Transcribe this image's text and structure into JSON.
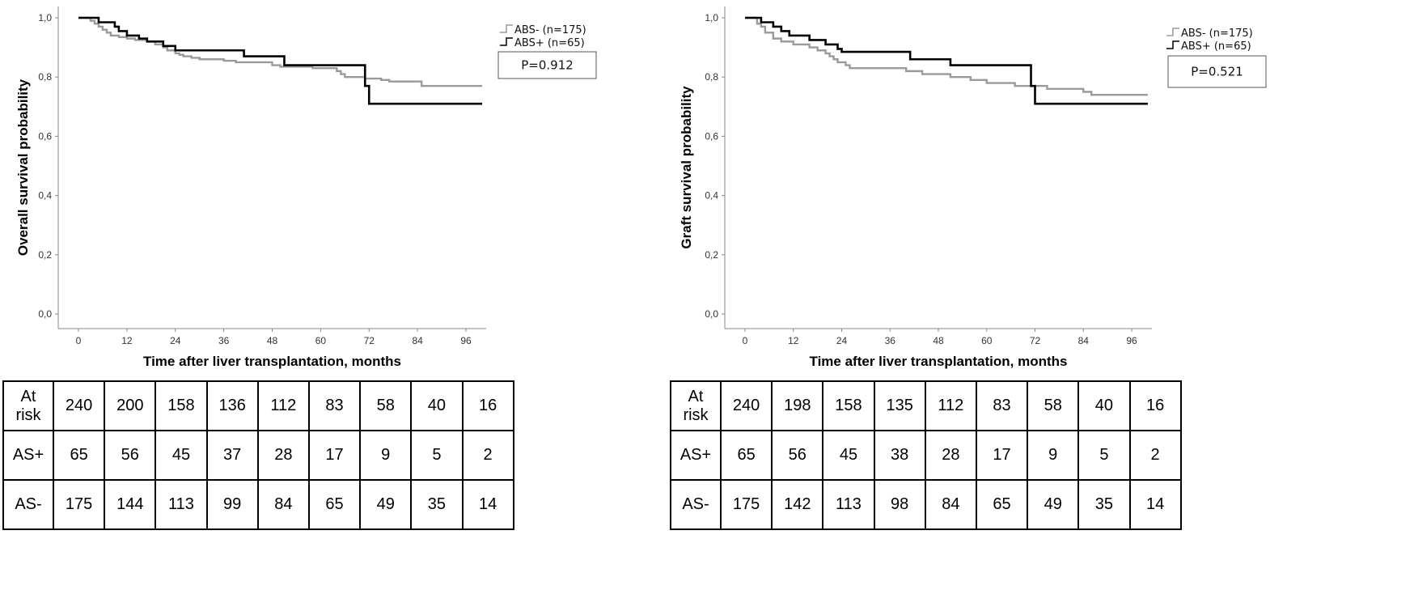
{
  "chart_data": [
    {
      "type": "line",
      "subtype": "kaplan-meier",
      "ylabel": "Overall survival probability",
      "xlabel": "Time after liver transplantation, months",
      "xlim": [
        0,
        100
      ],
      "ylim": [
        0,
        1.0
      ],
      "xticks": [
        0,
        12,
        24,
        36,
        48,
        60,
        72,
        84,
        96
      ],
      "yticks": [
        "0,0",
        "0,2",
        "0,4",
        "0,6",
        "0,8",
        "1,0"
      ],
      "legend": [
        "ABS- (n=175)",
        "ABS+ (n=65)"
      ],
      "p_value": "P=0.912",
      "series": [
        {
          "name": "ABS- (n=175)",
          "color": "#9a9a9a",
          "points": [
            [
              0,
              1.0
            ],
            [
              3,
              0.99
            ],
            [
              4,
              0.98
            ],
            [
              5,
              0.97
            ],
            [
              6,
              0.96
            ],
            [
              7,
              0.95
            ],
            [
              8,
              0.94
            ],
            [
              10,
              0.935
            ],
            [
              12,
              0.93
            ],
            [
              14,
              0.925
            ],
            [
              17,
              0.92
            ],
            [
              19,
              0.91
            ],
            [
              21,
              0.9
            ],
            [
              22,
              0.89
            ],
            [
              24,
              0.88
            ],
            [
              25,
              0.875
            ],
            [
              26,
              0.87
            ],
            [
              28,
              0.865
            ],
            [
              30,
              0.86
            ],
            [
              36,
              0.855
            ],
            [
              39,
              0.85
            ],
            [
              48,
              0.84
            ],
            [
              50,
              0.835
            ],
            [
              58,
              0.83
            ],
            [
              64,
              0.82
            ],
            [
              65,
              0.81
            ],
            [
              66,
              0.8
            ],
            [
              71,
              0.795
            ],
            [
              75,
              0.79
            ],
            [
              77,
              0.785
            ],
            [
              85,
              0.77
            ],
            [
              100,
              0.77
            ]
          ]
        },
        {
          "name": "ABS+ (n=65)",
          "color": "#000000",
          "points": [
            [
              0,
              1.0
            ],
            [
              5,
              0.985
            ],
            [
              9,
              0.97
            ],
            [
              10,
              0.955
            ],
            [
              12,
              0.94
            ],
            [
              15,
              0.93
            ],
            [
              17,
              0.92
            ],
            [
              21,
              0.905
            ],
            [
              24,
              0.89
            ],
            [
              41,
              0.87
            ],
            [
              51,
              0.84
            ],
            [
              71,
              0.77
            ],
            [
              72,
              0.71
            ],
            [
              100,
              0.71
            ]
          ]
        }
      ],
      "risk_table": {
        "rows": [
          {
            "label": "At\nrisk",
            "values": [
              "240",
              "200",
              "158",
              "136",
              "112",
              "83",
              "58",
              "40",
              "16"
            ]
          },
          {
            "label": "AS+",
            "values": [
              "65",
              "56",
              "45",
              "37",
              "28",
              "17",
              "9",
              "5",
              "2"
            ]
          },
          {
            "label": "AS-",
            "values": [
              "175",
              "144",
              "113",
              "99",
              "84",
              "65",
              "49",
              "35",
              "14"
            ]
          }
        ]
      }
    },
    {
      "type": "line",
      "subtype": "kaplan-meier",
      "ylabel": "Graft survival probability",
      "xlabel": "Time after liver transplantation, months",
      "xlim": [
        0,
        100
      ],
      "ylim": [
        0,
        1.0
      ],
      "xticks": [
        0,
        12,
        24,
        36,
        48,
        60,
        72,
        84,
        96
      ],
      "yticks": [
        "0,0",
        "0,2",
        "0,4",
        "0,6",
        "0,8",
        "1,0"
      ],
      "legend": [
        "ABS- (n=175)",
        "ABS+ (n=65)"
      ],
      "p_value": "P=0.521",
      "series": [
        {
          "name": "ABS- (n=175)",
          "color": "#9a9a9a",
          "points": [
            [
              0,
              1.0
            ],
            [
              3,
              0.98
            ],
            [
              4,
              0.97
            ],
            [
              5,
              0.95
            ],
            [
              7,
              0.93
            ],
            [
              9,
              0.92
            ],
            [
              12,
              0.91
            ],
            [
              16,
              0.9
            ],
            [
              18,
              0.89
            ],
            [
              20,
              0.88
            ],
            [
              21,
              0.87
            ],
            [
              22,
              0.86
            ],
            [
              23,
              0.85
            ],
            [
              25,
              0.84
            ],
            [
              26,
              0.83
            ],
            [
              40,
              0.82
            ],
            [
              44,
              0.81
            ],
            [
              51,
              0.8
            ],
            [
              56,
              0.79
            ],
            [
              60,
              0.78
            ],
            [
              67,
              0.77
            ],
            [
              75,
              0.76
            ],
            [
              84,
              0.75
            ],
            [
              86,
              0.74
            ],
            [
              100,
              0.74
            ]
          ]
        },
        {
          "name": "ABS+ (n=65)",
          "color": "#000000",
          "points": [
            [
              0,
              1.0
            ],
            [
              4,
              0.985
            ],
            [
              7,
              0.97
            ],
            [
              9,
              0.955
            ],
            [
              11,
              0.94
            ],
            [
              16,
              0.925
            ],
            [
              20,
              0.91
            ],
            [
              23,
              0.895
            ],
            [
              24,
              0.885
            ],
            [
              41,
              0.86
            ],
            [
              51,
              0.84
            ],
            [
              71,
              0.77
            ],
            [
              72,
              0.71
            ],
            [
              100,
              0.71
            ]
          ]
        }
      ],
      "risk_table": {
        "rows": [
          {
            "label": "At\nrisk",
            "values": [
              "240",
              "198",
              "158",
              "135",
              "112",
              "83",
              "58",
              "40",
              "16"
            ]
          },
          {
            "label": "AS+",
            "values": [
              "65",
              "56",
              "45",
              "38",
              "28",
              "17",
              "9",
              "5",
              "2"
            ]
          },
          {
            "label": "AS-",
            "values": [
              "175",
              "142",
              "113",
              "98",
              "84",
              "65",
              "49",
              "35",
              "14"
            ]
          }
        ]
      }
    }
  ]
}
